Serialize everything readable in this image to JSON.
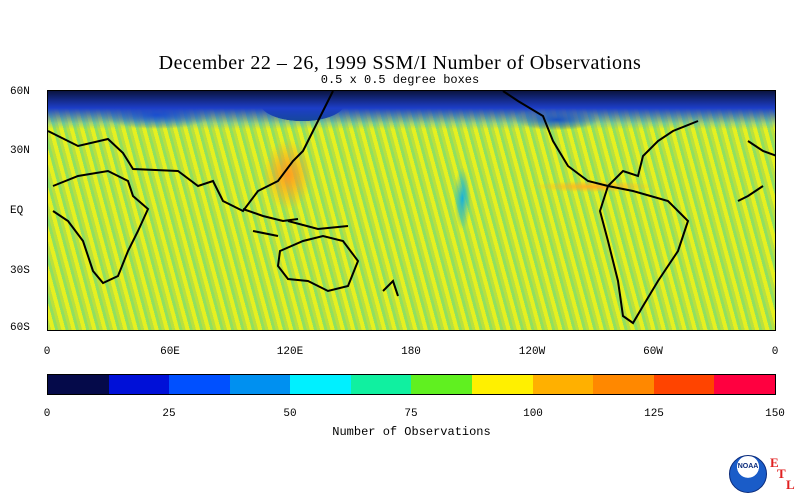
{
  "title": "December 22 – 26, 1999 SSM/I Number of Observations",
  "subtitle": "0.5 x 0.5 degree boxes",
  "lat_labels": [
    "60N",
    "30N",
    "EQ",
    "30S",
    "60S"
  ],
  "lon_labels": [
    "0",
    "60E",
    "120E",
    "180",
    "120W",
    "60W",
    "0"
  ],
  "colorbar": {
    "title": "Number of Observations",
    "labels": [
      "0",
      "25",
      "50",
      "75",
      "100",
      "125",
      "150"
    ],
    "colors": [
      "#050a4a",
      "#0010d8",
      "#0050ff",
      "#0090f0",
      "#00f0ff",
      "#10f0a0",
      "#60f020",
      "#fff000",
      "#ffb000",
      "#ff8800",
      "#ff4400",
      "#ff0040"
    ]
  },
  "logo": {
    "text": "NOAA",
    "letters": [
      "E",
      "T",
      "L"
    ]
  }
}
